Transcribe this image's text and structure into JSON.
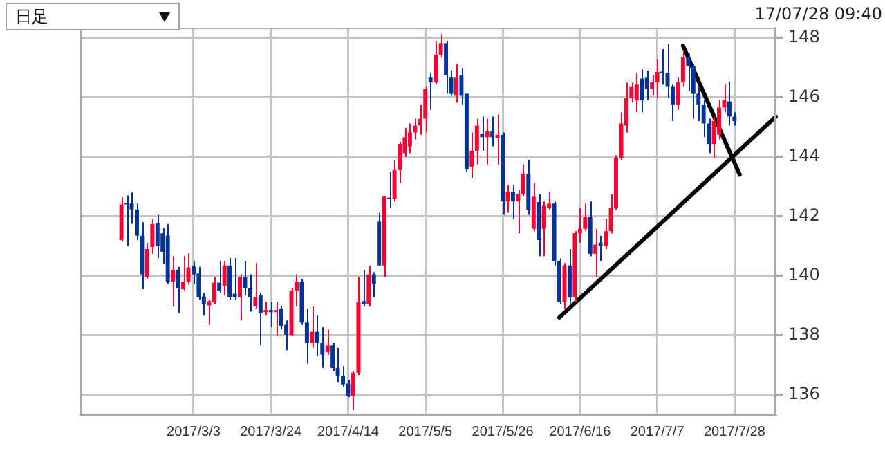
{
  "chart_data": {
    "type": "candlestick",
    "categories": [
      null,
      null,
      null,
      null,
      null,
      null,
      null,
      null,
      null,
      null,
      null,
      null,
      null,
      null,
      null,
      null,
      null,
      null,
      null,
      null,
      null,
      null,
      "2017/3/3",
      null,
      null,
      null,
      null,
      null,
      null,
      null,
      null,
      null,
      null,
      null,
      null,
      null,
      null,
      "2017/3/24",
      null,
      null,
      null,
      null,
      null,
      null,
      null,
      null,
      null,
      null,
      null,
      null,
      null,
      null,
      "2017/4/14",
      null,
      null,
      null,
      null,
      null,
      null,
      null,
      null,
      null,
      null,
      null,
      null,
      null,
      null,
      "2017/5/5",
      null,
      null,
      null,
      null,
      null,
      null,
      null,
      null,
      null,
      null,
      null,
      null,
      null,
      null,
      "2017/5/26",
      null,
      null,
      null,
      null,
      null,
      null,
      null,
      null,
      null,
      null,
      null,
      null,
      null,
      null,
      "2017/6/16",
      null,
      null,
      null,
      null,
      null,
      null,
      null,
      null,
      null,
      null,
      null,
      null,
      null,
      null,
      "2017/7/7",
      null,
      null,
      null,
      null,
      null,
      null,
      null,
      null,
      null,
      null,
      null,
      null,
      null,
      null,
      "2017/7/28",
      null,
      null,
      null,
      null,
      null,
      null,
      null,
      null
    ],
    "ohlc": [
      null,
      null,
      null,
      null,
      null,
      null,
      null,
      null,
      [
        141.2,
        142.63,
        141.15,
        142.4
      ],
      [
        142.45,
        142.7,
        141.0,
        142.4
      ],
      [
        142.43,
        142.8,
        141.75,
        142.23
      ],
      [
        142.23,
        142.43,
        141.2,
        141.35
      ],
      [
        141.35,
        141.8,
        139.55,
        140.05
      ],
      [
        139.97,
        141.1,
        139.9,
        140.9
      ],
      [
        140.97,
        141.9,
        140.74,
        141.74
      ],
      [
        141.77,
        142.05,
        140.6,
        141.0
      ],
      [
        141.43,
        141.6,
        140.4,
        140.8
      ],
      [
        141.35,
        141.74,
        139.74,
        139.8
      ],
      [
        139.8,
        140.66,
        138.97,
        140.2
      ],
      [
        140.2,
        140.3,
        138.75,
        139.58
      ],
      [
        139.55,
        140.66,
        139.5,
        139.8
      ],
      [
        139.8,
        140.75,
        139.7,
        140.28
      ],
      [
        140.32,
        140.5,
        139.74,
        140.05
      ],
      [
        140.08,
        140.3,
        139.2,
        139.28
      ],
      [
        139.3,
        139.43,
        138.66,
        139.05
      ],
      [
        139.0,
        139.2,
        138.35,
        139.15
      ],
      [
        139.12,
        139.97,
        139.05,
        139.77
      ],
      [
        139.77,
        140.5,
        139.43,
        139.5
      ],
      [
        139.66,
        140.5,
        139.35,
        140.35
      ],
      [
        140.35,
        140.6,
        139.2,
        139.28
      ],
      [
        139.4,
        140.6,
        139.2,
        139.28
      ],
      [
        139.28,
        140.05,
        138.5,
        139.97
      ],
      [
        139.97,
        140.5,
        139.35,
        139.58
      ],
      [
        139.58,
        140.05,
        138.8,
        139.28
      ],
      [
        138.97,
        140.43,
        138.9,
        139.28
      ],
      [
        139.35,
        139.43,
        137.66,
        138.74
      ],
      [
        138.78,
        139.12,
        138.66,
        138.85
      ],
      [
        138.85,
        139.12,
        138.28,
        138.78
      ],
      [
        138.78,
        139.12,
        137.97,
        138.85
      ],
      [
        138.9,
        138.97,
        138.2,
        138.32
      ],
      [
        138.35,
        138.5,
        137.5,
        138.02
      ],
      [
        138.0,
        139.58,
        137.97,
        139.5
      ],
      [
        139.5,
        140.05,
        138.97,
        139.8
      ],
      [
        139.8,
        139.9,
        138.35,
        138.43
      ],
      [
        138.43,
        138.9,
        137.05,
        137.74
      ],
      [
        137.74,
        138.97,
        137.58,
        138.12
      ],
      [
        138.12,
        138.66,
        137.3,
        137.74
      ],
      [
        137.74,
        138.28,
        136.9,
        137.35
      ],
      [
        137.43,
        138.2,
        137.35,
        137.66
      ],
      [
        137.66,
        137.74,
        136.8,
        136.9
      ],
      [
        136.9,
        137.58,
        136.43,
        136.63
      ],
      [
        136.63,
        136.97,
        136.28,
        136.35
      ],
      [
        136.38,
        136.5,
        135.92,
        135.97
      ],
      [
        135.97,
        136.8,
        135.5,
        136.74
      ],
      [
        136.74,
        139.97,
        136.66,
        139.12
      ],
      [
        139.15,
        140.2,
        138.97,
        139.05
      ],
      [
        139.05,
        140.35,
        138.97,
        140.05
      ],
      [
        140.05,
        140.12,
        139.28,
        139.74
      ],
      [
        141.82,
        142.12,
        140.35,
        140.35
      ],
      [
        140.35,
        142.66,
        139.97,
        142.66
      ],
      [
        142.63,
        143.5,
        142.28,
        142.58
      ],
      [
        142.58,
        143.9,
        142.5,
        143.55
      ],
      [
        143.55,
        144.5,
        143.12,
        144.43
      ],
      [
        144.12,
        144.97,
        144.0,
        144.66
      ],
      [
        144.35,
        145.12,
        144.12,
        144.82
      ],
      [
        144.82,
        145.28,
        144.58,
        145.05
      ],
      [
        145.05,
        145.74,
        144.74,
        145.28
      ],
      [
        145.28,
        146.35,
        144.82,
        146.28
      ],
      [
        146.66,
        146.82,
        145.58,
        146.5
      ],
      [
        146.5,
        147.9,
        146.43,
        147.43
      ],
      [
        147.43,
        148.12,
        147.35,
        147.82
      ],
      [
        147.82,
        147.9,
        146.12,
        146.74
      ],
      [
        146.66,
        146.9,
        146.05,
        146.12
      ],
      [
        146.05,
        147.12,
        145.82,
        146.66
      ],
      [
        146.74,
        146.97,
        145.74,
        146.05
      ],
      [
        146.12,
        146.12,
        143.5,
        143.58
      ],
      [
        143.66,
        144.82,
        143.28,
        144.2
      ],
      [
        144.2,
        145.28,
        143.74,
        145.05
      ],
      [
        144.78,
        145.35,
        144.2,
        144.66
      ],
      [
        144.66,
        145.28,
        143.74,
        144.85
      ],
      [
        144.85,
        145.35,
        144.35,
        144.66
      ],
      [
        144.62,
        145.43,
        143.74,
        144.74
      ],
      [
        144.74,
        144.82,
        142.05,
        142.5
      ],
      [
        142.5,
        143.05,
        142.12,
        142.82
      ],
      [
        142.82,
        143.05,
        141.9,
        142.5
      ],
      [
        142.5,
        142.9,
        141.43,
        142.74
      ],
      [
        142.74,
        143.74,
        142.66,
        143.43
      ],
      [
        143.43,
        143.9,
        142.05,
        142.2
      ],
      [
        141.58,
        143.12,
        141.5,
        142.66
      ],
      [
        142.48,
        142.74,
        140.66,
        141.2
      ],
      [
        141.58,
        142.5,
        140.66,
        142.35
      ],
      [
        142.28,
        142.82,
        142.2,
        142.43
      ],
      [
        142.43,
        142.5,
        140.35,
        140.5
      ],
      [
        140.5,
        140.58,
        139.05,
        139.12
      ],
      [
        139.12,
        140.43,
        138.9,
        140.35
      ],
      [
        140.35,
        140.9,
        139.05,
        139.28
      ],
      [
        139.28,
        141.5,
        139.12,
        141.43
      ],
      [
        141.43,
        142.28,
        141.12,
        141.58
      ],
      [
        141.58,
        142.43,
        141.5,
        141.97
      ],
      [
        141.97,
        142.5,
        140.66,
        140.74
      ],
      [
        140.74,
        141.58,
        139.97,
        141.05
      ],
      [
        141.12,
        141.35,
        140.5,
        141.0
      ],
      [
        141.0,
        141.9,
        140.9,
        141.5
      ],
      [
        141.5,
        142.74,
        141.43,
        142.28
      ],
      [
        142.28,
        144.05,
        142.2,
        143.97
      ],
      [
        143.97,
        145.5,
        143.9,
        145.12
      ],
      [
        145.05,
        146.5,
        144.82,
        145.97
      ],
      [
        145.97,
        146.5,
        145.82,
        146.35
      ],
      [
        145.9,
        146.82,
        145.5,
        146.43
      ],
      [
        146.63,
        146.94,
        145.5,
        145.9
      ],
      [
        146.66,
        146.9,
        145.9,
        146.28
      ],
      [
        146.28,
        146.74,
        146.05,
        146.5
      ],
      [
        146.5,
        147.28,
        145.97,
        146.85
      ],
      [
        146.85,
        147.62,
        146.43,
        146.82
      ],
      [
        146.82,
        147.78,
        145.97,
        146.35
      ],
      [
        146.35,
        146.43,
        145.2,
        145.74
      ],
      [
        145.74,
        146.66,
        145.58,
        146.5
      ],
      [
        146.5,
        147.58,
        146.35,
        147.35
      ],
      [
        147.35,
        147.47,
        146.2,
        147.05
      ],
      [
        147.05,
        147.12,
        145.28,
        146.12
      ],
      [
        146.12,
        146.35,
        145.2,
        145.74
      ],
      [
        145.74,
        145.9,
        144.66,
        145.12
      ],
      [
        145.12,
        145.28,
        144.12,
        144.43
      ],
      [
        144.43,
        145.35,
        143.97,
        145.2
      ],
      [
        144.74,
        145.9,
        144.58,
        145.66
      ],
      [
        145.66,
        146.43,
        145.5,
        145.9
      ],
      [
        145.86,
        146.54,
        145.05,
        145.35
      ],
      [
        145.35,
        145.5,
        145.05,
        145.2
      ],
      null,
      null,
      null,
      null,
      null,
      null,
      null,
      null
    ],
    "colors": [
      null,
      null,
      null,
      null,
      null,
      null,
      null,
      null,
      "#ff0033",
      "#003399",
      "#003399",
      "#003399",
      "#003399",
      "#ff0033",
      "#ff0033",
      "#003399",
      "#003399",
      "#003399",
      "#ff0033",
      "#003399",
      "#ff0033",
      "#ff0033",
      "#003399",
      "#003399",
      "#003399",
      "#ff0033",
      "#ff0033",
      "#003399",
      "#ff0033",
      "#003399",
      "#003399",
      "#ff0033",
      "#003399",
      "#003399",
      "#ff0033",
      "#003399",
      "#ff0033",
      "#003399",
      "#ff0033",
      "#003399",
      "#003399",
      "#ff0033",
      "#ff0033",
      "#003399",
      "#003399",
      "#ff0033",
      "#003399",
      "#003399",
      "#ff0033",
      "#003399",
      "#003399",
      "#003399",
      "#003399",
      "#ff0033",
      "#ff0033",
      "#003399",
      "#ff0033",
      "#003399",
      "#003399",
      "#ff0033",
      "#003399",
      "#ff0033",
      "#ff0033",
      "#ff0033",
      "#ff0033",
      "#ff0033",
      "#ff0033",
      "#ff0033",
      "#003399",
      "#ff0033",
      "#ff0033",
      "#003399",
      "#003399",
      "#ff0033",
      "#003399",
      "#003399",
      "#ff0033",
      "#ff0033",
      "#003399",
      "#ff0033",
      "#003399",
      "#ff0033",
      "#003399",
      "#ff0033",
      "#003399",
      "#ff0033",
      "#ff0033",
      "#003399",
      "#ff0033",
      "#003399",
      "#ff0033",
      "#ff0033",
      "#003399",
      "#003399",
      "#ff0033",
      "#003399",
      "#ff0033",
      "#ff0033",
      "#ff0033",
      "#003399",
      "#ff0033",
      "#003399",
      "#ff0033",
      "#ff0033",
      "#ff0033",
      "#ff0033",
      "#ff0033",
      "#ff0033",
      "#ff0033",
      "#003399",
      "#003399",
      "#ff0033",
      "#ff0033",
      "#003399",
      "#003399",
      "#003399",
      "#ff0033",
      "#ff0033",
      "#003399",
      "#003399",
      "#003399",
      "#003399",
      "#003399",
      "#ff0033",
      "#ff0033",
      "#ff0033",
      "#003399",
      "#003399",
      null,
      null,
      null,
      null,
      null,
      null,
      null,
      null
    ],
    "series": [
      {
        "type": "line",
        "color": "#000000",
        "values": [
          null,
          null,
          null,
          null,
          null,
          null,
          null,
          null,
          null,
          null,
          null,
          null,
          null,
          null,
          null,
          null,
          null,
          null,
          null,
          null,
          null,
          null,
          null,
          null,
          null,
          null,
          null,
          null,
          null,
          null,
          null,
          null,
          null,
          null,
          null,
          null,
          null,
          null,
          null,
          null,
          null,
          null,
          null,
          null,
          null,
          null,
          null,
          null,
          null,
          null,
          null,
          null,
          null,
          null,
          null,
          null,
          null,
          null,
          null,
          null,
          null,
          null,
          null,
          null,
          null,
          null,
          null,
          null,
          null,
          null,
          null,
          null,
          null,
          null,
          null,
          null,
          null,
          null,
          null,
          null,
          null,
          null,
          null,
          null,
          null,
          null,
          null,
          null,
          null,
          null,
          null,
          null,
          null,
          138.6,
          null,
          null,
          null,
          null,
          null,
          null,
          null,
          null,
          null,
          null,
          null,
          null,
          null,
          null,
          null,
          null,
          null,
          null,
          null,
          null,
          null,
          null,
          null,
          null,
          null,
          null,
          null,
          null,
          null,
          null,
          null,
          null,
          null,
          null,
          null,
          null,
          null,
          null,
          null,
          null,
          null,
          145.35
        ]
      },
      {
        "type": "line",
        "color": "#000000",
        "values": [
          null,
          null,
          null,
          null,
          null,
          null,
          null,
          null,
          null,
          null,
          null,
          null,
          null,
          null,
          null,
          null,
          null,
          null,
          null,
          null,
          null,
          null,
          null,
          null,
          null,
          null,
          null,
          null,
          null,
          null,
          null,
          null,
          null,
          null,
          null,
          null,
          null,
          null,
          null,
          null,
          null,
          null,
          null,
          null,
          null,
          null,
          null,
          null,
          null,
          null,
          null,
          null,
          null,
          null,
          null,
          null,
          null,
          null,
          null,
          null,
          null,
          null,
          null,
          null,
          null,
          null,
          null,
          null,
          null,
          null,
          null,
          null,
          null,
          null,
          null,
          null,
          null,
          null,
          null,
          null,
          null,
          null,
          null,
          null,
          null,
          null,
          null,
          null,
          null,
          null,
          null,
          null,
          null,
          null,
          null,
          null,
          null,
          null,
          null,
          null,
          null,
          null,
          null,
          null,
          null,
          null,
          null,
          null,
          null,
          null,
          null,
          null,
          null,
          null,
          null,
          null,
          null,
          147.73,
          null,
          null,
          null,
          null,
          null,
          null,
          null,
          null,
          null,
          null,
          143.4,
          null,
          null,
          null,
          null,
          null,
          null,
          null
        ]
      }
    ],
    "ylim": [
      135.32,
      148.34
    ],
    "yticks": [
      136,
      138,
      140,
      142,
      144,
      146,
      148
    ],
    "grid": true,
    "annotations": [
      "日足",
      "17/07/28 09:40"
    ]
  }
}
